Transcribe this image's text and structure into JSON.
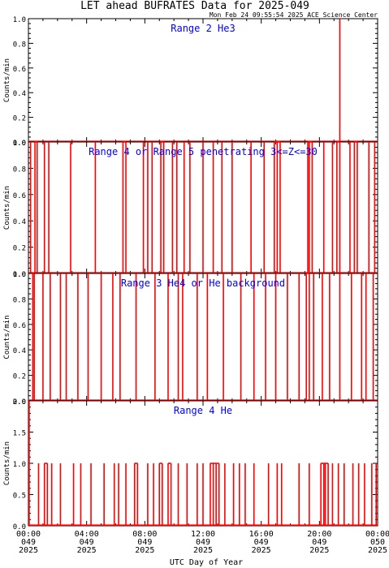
{
  "title": "LET ahead BUFRATES Data for 2025-049",
  "timestamp": "Mon Feb 24 09:55:54 2025 ACE Science Center",
  "xlabel": "UTC Day of Year",
  "ylabel": "Counts/min",
  "colors": {
    "series": "#ff0000",
    "panel_title": "#0000ff",
    "axes": "#000000"
  },
  "x_ticks": [
    {
      "hour": 0,
      "time": "00:00",
      "doy": "049",
      "year": "2025"
    },
    {
      "hour": 4,
      "time": "04:00",
      "doy": "049",
      "year": "2025"
    },
    {
      "hour": 8,
      "time": "08:00",
      "doy": "049",
      "year": "2025"
    },
    {
      "hour": 12,
      "time": "12:00",
      "doy": "049",
      "year": "2025"
    },
    {
      "hour": 16,
      "time": "16:00",
      "doy": "049",
      "year": "2025"
    },
    {
      "hour": 20,
      "time": "20:00",
      "doy": "049",
      "year": "2025"
    },
    {
      "hour": 24,
      "time": "00:00",
      "doy": "050",
      "year": "2025"
    }
  ],
  "chart_data": [
    {
      "type": "line",
      "title": "Range 2 He3",
      "ylabel": "Counts/min",
      "ylim": [
        0,
        1.0
      ],
      "yticks": [
        "0.0",
        "0.2",
        "0.4",
        "0.6",
        "0.8",
        "1.0"
      ],
      "xlim_hours": [
        0,
        24
      ],
      "spike_value": 1,
      "spikes_hours": [
        21.4
      ]
    },
    {
      "type": "line",
      "title": "Range 4 or Range 5 penetrating 3<=Z<=30",
      "ylabel": "Counts/min",
      "ylim": [
        0,
        1.0
      ],
      "yticks": [
        "0.0",
        "0.2",
        "0.4",
        "0.6",
        "0.8",
        "1.0"
      ],
      "xlim_hours": [
        0,
        24
      ],
      "spike_value": 1,
      "spikes_hours": [
        0.15,
        0.45,
        0.6,
        1.1,
        1.4,
        2.9,
        4.6,
        6.5,
        6.7,
        7.9,
        8.2,
        8.5,
        9.1,
        9.3,
        9.9,
        10.2,
        10.7,
        11.1,
        12.0,
        12.7,
        13.3,
        14.0,
        15.3,
        16.2,
        16.9,
        17.1,
        17.3,
        19.2,
        19.3,
        19.5,
        20.3,
        20.9,
        21.2,
        21.4,
        22.1,
        22.4,
        22.6,
        23.4,
        23.8
      ]
    },
    {
      "type": "line",
      "title": "Range 3 He4 or He background",
      "ylabel": "Counts/min",
      "ylim": [
        0,
        1.0
      ],
      "yticks": [
        "0.0",
        "0.2",
        "0.4",
        "0.6",
        "0.8",
        "1.0"
      ],
      "xlim_hours": [
        0,
        24
      ],
      "spike_value": 1,
      "spikes_hours": [
        0.3,
        0.4,
        1.0,
        1.5,
        2.2,
        2.6,
        3.4,
        4.1,
        5.0,
        5.8,
        6.3,
        7.4,
        8.7,
        9.6,
        10.3,
        10.6,
        11.6,
        12.3,
        13.4,
        14.6,
        15.5,
        16.3,
        17.0,
        17.8,
        18.6,
        19.1,
        19.3,
        19.6,
        20.2,
        20.7,
        21.4,
        22.2,
        22.9,
        23.2,
        23.7
      ]
    },
    {
      "type": "line",
      "title": "Range 4 He",
      "ylabel": "Counts/min",
      "ylim": [
        0,
        2.0
      ],
      "yticks": [
        "0.0",
        "0.5",
        "1.0",
        "1.5",
        "2.0"
      ],
      "xlim_hours": [
        0,
        24
      ],
      "spike_value": 1,
      "special_spikes": [
        {
          "hour": 0.05,
          "value": 2
        }
      ],
      "spikes_hours": [
        0.7,
        1.1,
        1.3,
        1.6,
        2.2,
        3.1,
        3.6,
        4.3,
        5.2,
        5.9,
        6.2,
        6.7,
        7.3,
        7.5,
        8.2,
        8.6,
        9.0,
        9.2,
        9.6,
        9.8,
        10.3,
        10.9,
        11.6,
        12.0,
        12.5,
        12.7,
        12.9,
        13.1,
        13.5,
        14.1,
        14.5,
        14.9,
        15.5,
        16.5,
        17.1,
        17.4,
        18.6,
        19.3,
        20.1,
        20.3,
        20.4,
        20.6,
        20.9,
        21.3,
        21.7,
        22.3,
        22.7,
        23.1,
        23.6,
        23.9
      ]
    }
  ]
}
